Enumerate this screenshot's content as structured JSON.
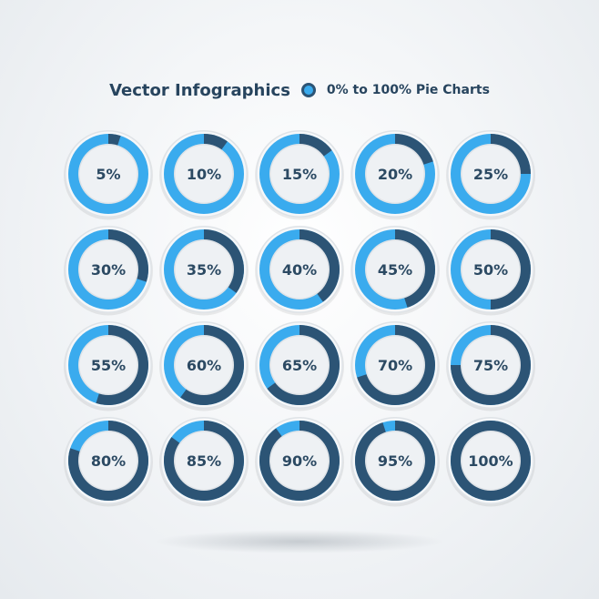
{
  "header": {
    "title": "Vector Infographics",
    "subtitle": "0% to 100% Pie Charts"
  },
  "colors": {
    "remaining": "#3aabee",
    "progress": "#2c5475",
    "inner": "#eef1f4",
    "outer_rim": "#dfe3e7",
    "label": "#2c4a63"
  },
  "chart_data": {
    "type": "pie",
    "title": "Vector Infographics",
    "subtitle": "0% to 100% Pie Charts",
    "categories": [
      "5%",
      "10%",
      "15%",
      "20%",
      "25%",
      "30%",
      "35%",
      "40%",
      "45%",
      "50%",
      "55%",
      "60%",
      "65%",
      "70%",
      "75%",
      "80%",
      "85%",
      "90%",
      "95%",
      "100%"
    ],
    "values": [
      5,
      10,
      15,
      20,
      25,
      30,
      35,
      40,
      45,
      50,
      55,
      60,
      65,
      70,
      75,
      80,
      85,
      90,
      95,
      100
    ]
  }
}
